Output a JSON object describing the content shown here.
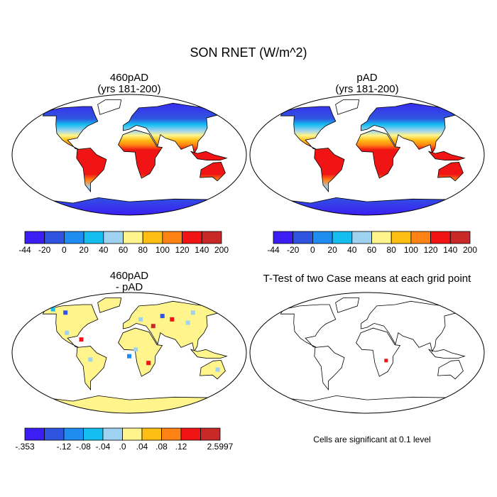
{
  "title": "SON RNET (W/m^2)",
  "panels": [
    {
      "title": "460pAD",
      "subtitle": "(yrs 181-200)"
    },
    {
      "title": "pAD",
      "subtitle": "(yrs 181-200)"
    },
    {
      "title": "460pAD",
      "subtitle": "- pAD"
    },
    {
      "title": "T-Test of two Case means at each grid point"
    }
  ],
  "colorbars": [
    {
      "colors": [
        "#3c1ef5",
        "#2f55e0",
        "#1e8cf0",
        "#14bef0",
        "#9ed2f0",
        "#fff58c",
        "#ffbe14",
        "#ff8214",
        "#f01414",
        "#c82828"
      ],
      "labels": [
        "-44",
        "-20",
        "0",
        "20",
        "40",
        "60",
        "80",
        "100",
        "120",
        "140",
        "200"
      ]
    },
    {
      "colors": [
        "#3c1ef5",
        "#2f55e0",
        "#1e8cf0",
        "#14bef0",
        "#9ed2f0",
        "#fff58c",
        "#ffbe14",
        "#ff8214",
        "#f01414",
        "#c82828"
      ],
      "labels": [
        "-44",
        "-20",
        "0",
        "20",
        "40",
        "60",
        "80",
        "100",
        "120",
        "140",
        "200"
      ]
    },
    {
      "colors": [
        "#3c1ef5",
        "#2f55e0",
        "#1e8cf0",
        "#14bef0",
        "#9ed2f0",
        "#fff58c",
        "#ffbe14",
        "#ff8214",
        "#f01414",
        "#c82828"
      ],
      "labels": [
        "-.353",
        null,
        "-.12",
        "-.08",
        "-.04",
        ".0",
        ".04",
        ".08",
        ".12",
        null,
        "2.5997"
      ]
    }
  ],
  "note": "Cells are significant at 0.1 level"
}
